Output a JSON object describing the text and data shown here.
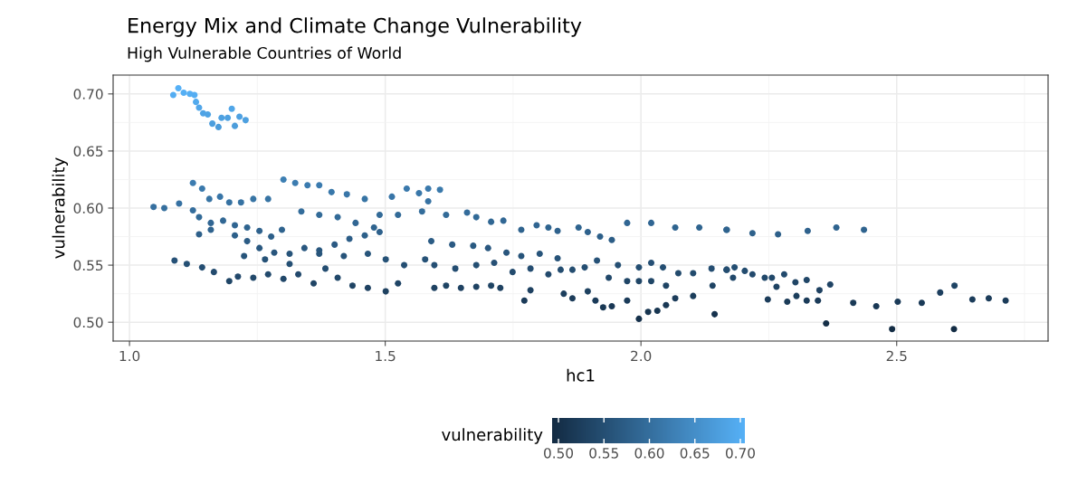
{
  "chart_data": {
    "type": "scatter",
    "title": "Energy Mix and Climate Change Vulnerability",
    "subtitle": "High Vulnerable Countries of World",
    "xlabel": "hc1",
    "ylabel": "vulnerability",
    "clabel": "vulnerability",
    "xlim": [
      0.968,
      2.796
    ],
    "ylim": [
      0.4835,
      0.7165
    ],
    "xticks": [
      {
        "value": 1.0,
        "label": "1.0"
      },
      1.5,
      {
        "value": 2.0,
        "label": "2.0"
      },
      2.5
    ],
    "yticks": [
      {
        "value": 0.5,
        "label": "0.50"
      },
      {
        "value": 0.55,
        "label": "0.55"
      },
      {
        "value": 0.6,
        "label": "0.60"
      },
      {
        "value": 0.65,
        "label": "0.65"
      },
      {
        "value": 0.7,
        "label": "0.70"
      }
    ],
    "clim": [
      0.493,
      0.705
    ],
    "cticks": [
      {
        "value": 0.5,
        "label": "0.50"
      },
      {
        "value": 0.55,
        "label": "0.55"
      },
      {
        "value": 0.6,
        "label": "0.60"
      },
      {
        "value": 0.65,
        "label": "0.65"
      },
      {
        "value": 0.7,
        "label": "0.70"
      }
    ],
    "grid": true,
    "marker": "circle",
    "x": [
      1.0855,
      1.0955,
      1.106,
      1.118,
      1.127,
      1.13,
      1.136,
      1.144,
      1.153,
      1.162,
      1.174,
      1.18,
      1.192,
      1.2,
      1.206,
      1.215,
      1.227,
      1.047,
      1.068,
      1.097,
      1.124,
      1.136,
      1.159,
      1.183,
      1.206,
      1.23,
      1.254,
      1.277,
      1.298,
      1.124,
      1.142,
      1.156,
      1.177,
      1.195,
      1.218,
      1.242,
      1.271,
      1.301,
      1.324,
      1.348,
      1.371,
      1.395,
      1.425,
      1.46,
      1.336,
      1.371,
      1.407,
      1.442,
      1.478,
      1.489,
      1.513,
      1.542,
      1.566,
      1.584,
      1.088,
      1.112,
      1.142,
      1.165,
      1.195,
      1.212,
      1.242,
      1.271,
      1.301,
      1.33,
      1.36,
      1.383,
      1.407,
      1.436,
      1.466,
      1.501,
      1.525,
      1.136,
      1.159,
      1.206,
      1.23,
      1.254,
      1.283,
      1.313,
      1.342,
      1.371,
      1.401,
      1.43,
      1.46,
      1.489,
      1.525,
      1.224,
      1.265,
      1.313,
      1.371,
      1.419,
      1.466,
      1.501,
      1.537,
      1.578,
      1.584,
      1.607,
      1.572,
      1.619,
      1.66,
      1.678,
      1.707,
      1.731,
      1.766,
      1.796,
      1.819,
      1.837,
      1.878,
      1.896,
      1.92,
      1.943,
      1.973,
      2.02,
      2.067,
      2.114,
      2.167,
      1.59,
      1.631,
      1.672,
      1.701,
      1.737,
      1.766,
      1.802,
      1.837,
      1.866,
      1.89,
      1.914,
      1.937,
      1.955,
      1.973,
      1.996,
      2.02,
      2.043,
      2.073,
      2.102,
      2.138,
      2.167,
      1.596,
      1.637,
      1.678,
      1.713,
      1.749,
      1.784,
      1.819,
      1.843,
      1.596,
      1.619,
      1.648,
      1.678,
      1.707,
      1.725,
      1.772,
      1.784,
      1.849,
      1.866,
      1.896,
      1.911,
      1.926,
      1.943,
      1.973,
      1.996,
      2.014,
      2.032,
      2.049,
      2.067,
      2.102,
      2.144,
      2.14,
      1.996,
      2.02,
      2.049,
      2.168,
      2.218,
      2.268,
      2.326,
      2.382,
      2.436,
      2.168,
      2.183,
      2.18,
      2.203,
      2.218,
      2.242,
      2.256,
      2.248,
      2.265,
      2.28,
      2.286,
      2.302,
      2.304,
      2.324,
      2.324,
      2.346,
      2.349,
      2.37,
      2.362,
      2.415,
      2.46,
      2.491,
      2.502,
      2.549,
      2.585,
      2.613,
      2.612,
      2.648,
      2.68,
      2.713
    ],
    "values": [
      0.699,
      0.705,
      0.701,
      0.7,
      0.699,
      0.693,
      0.688,
      0.683,
      0.682,
      0.674,
      0.671,
      0.679,
      0.679,
      0.687,
      0.672,
      0.68,
      0.677,
      0.601,
      0.6,
      0.604,
      0.598,
      0.592,
      0.587,
      0.589,
      0.585,
      0.583,
      0.58,
      0.575,
      0.581,
      0.622,
      0.617,
      0.608,
      0.61,
      0.605,
      0.605,
      0.608,
      0.608,
      0.625,
      0.622,
      0.62,
      0.62,
      0.614,
      0.612,
      0.608,
      0.597,
      0.594,
      0.592,
      0.587,
      0.583,
      0.594,
      0.61,
      0.617,
      0.613,
      0.606,
      0.554,
      0.551,
      0.548,
      0.544,
      0.536,
      0.54,
      0.539,
      0.542,
      0.538,
      0.542,
      0.534,
      0.547,
      0.539,
      0.532,
      0.53,
      0.527,
      0.534,
      0.577,
      0.581,
      0.576,
      0.571,
      0.565,
      0.561,
      0.56,
      0.565,
      0.563,
      0.568,
      0.573,
      0.576,
      0.579,
      0.594,
      0.558,
      0.555,
      0.551,
      0.56,
      0.558,
      0.56,
      0.555,
      0.55,
      0.555,
      0.617,
      0.616,
      0.597,
      0.594,
      0.596,
      0.592,
      0.588,
      0.589,
      0.581,
      0.585,
      0.583,
      0.58,
      0.583,
      0.579,
      0.575,
      0.572,
      0.587,
      0.587,
      0.583,
      0.583,
      0.581,
      0.571,
      0.568,
      0.567,
      0.565,
      0.561,
      0.558,
      0.56,
      0.556,
      0.546,
      0.548,
      0.554,
      0.539,
      0.55,
      0.536,
      0.548,
      0.552,
      0.548,
      0.543,
      0.543,
      0.547,
      0.546,
      0.55,
      0.547,
      0.55,
      0.552,
      0.544,
      0.547,
      0.542,
      0.546,
      0.53,
      0.532,
      0.53,
      0.531,
      0.532,
      0.53,
      0.519,
      0.528,
      0.525,
      0.521,
      0.527,
      0.519,
      0.513,
      0.514,
      0.519,
      0.503,
      0.509,
      0.51,
      0.515,
      0.521,
      0.523,
      0.507,
      0.532,
      0.536,
      0.536,
      0.532,
      0.581,
      0.578,
      0.577,
      0.58,
      0.583,
      0.581,
      0.546,
      0.548,
      0.539,
      0.545,
      0.542,
      0.539,
      0.539,
      0.52,
      0.531,
      0.542,
      0.518,
      0.535,
      0.523,
      0.537,
      0.519,
      0.519,
      0.528,
      0.533,
      0.499,
      0.517,
      0.514,
      0.494,
      0.518,
      0.517,
      0.526,
      0.532,
      0.494,
      0.52,
      0.521,
      0.519
    ]
  }
}
